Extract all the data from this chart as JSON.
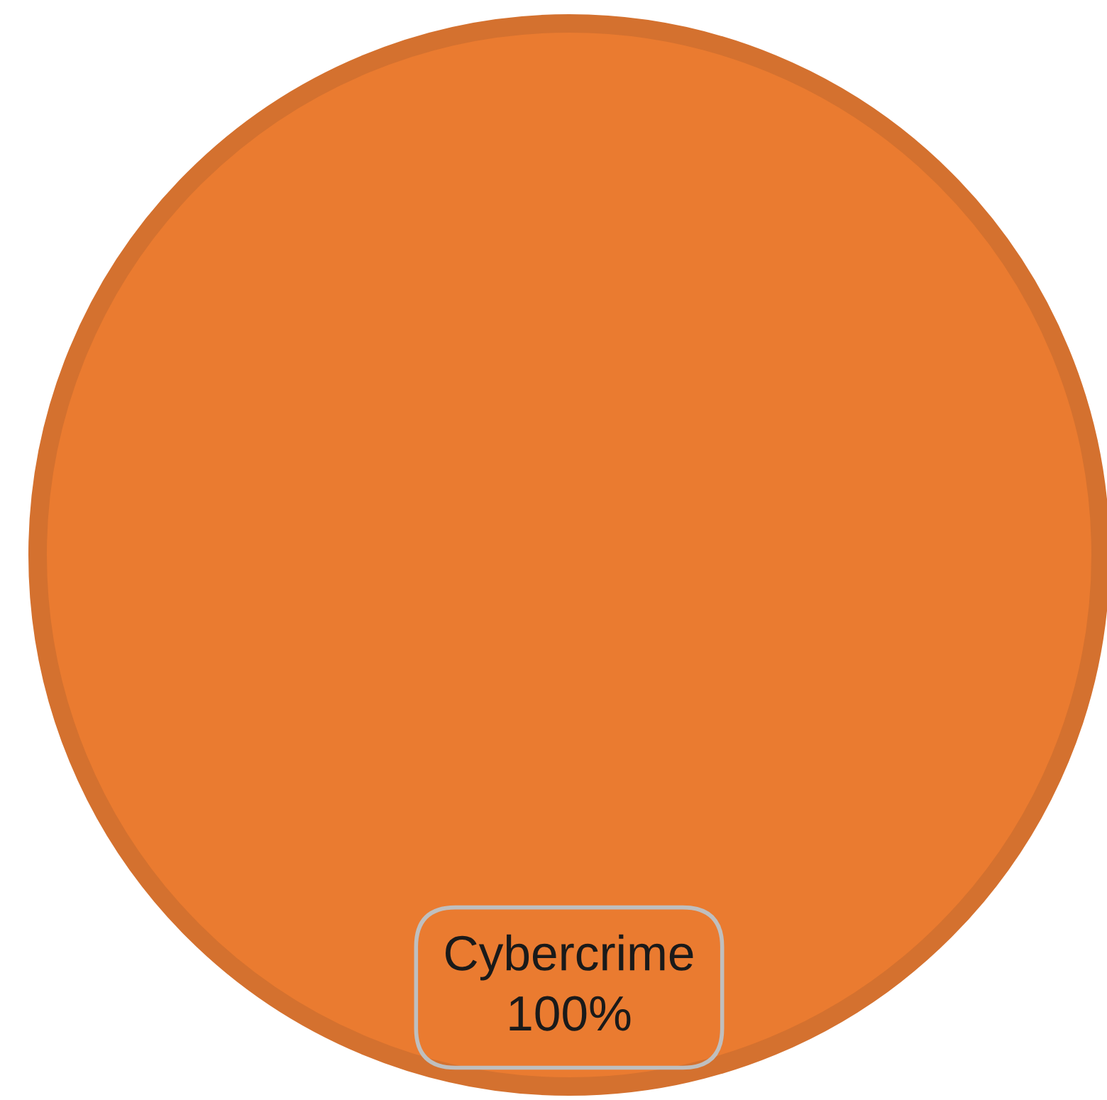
{
  "chart_data": {
    "type": "pie",
    "categories": [
      "Cybercrime"
    ],
    "values": [
      100
    ],
    "colors": [
      "#ea7b30"
    ],
    "value_labels": [
      "100%"
    ]
  }
}
